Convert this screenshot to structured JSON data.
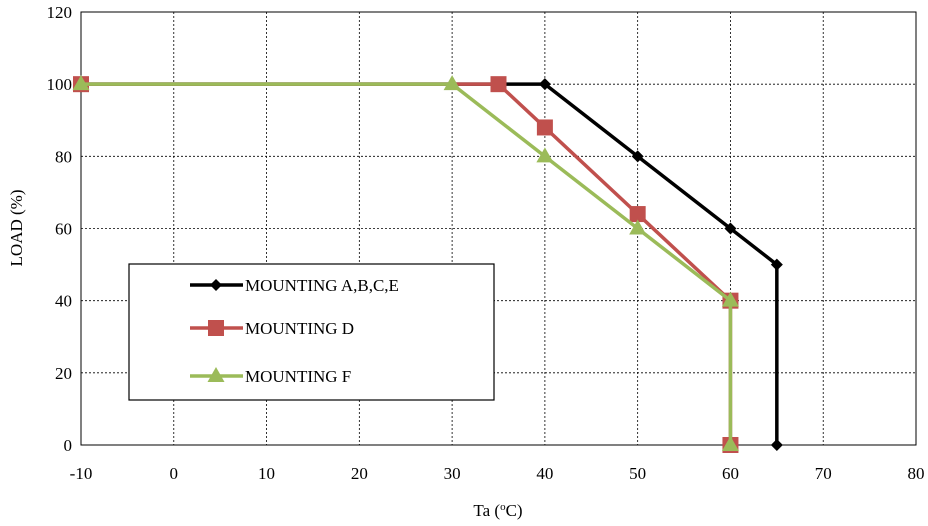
{
  "chart_data": {
    "type": "line",
    "title": "",
    "xlabel": "Ta (",
    "xlabel_sup": "o",
    "xlabel_tail": "C)",
    "ylabel": "LOAD (%)",
    "xlim": [
      -10,
      80
    ],
    "ylim": [
      0,
      120
    ],
    "xticks": [
      -10,
      0,
      10,
      20,
      30,
      40,
      50,
      60,
      70,
      80
    ],
    "yticks": [
      0,
      20,
      40,
      60,
      80,
      100,
      120
    ],
    "grid": true,
    "legend_position": "lower-left",
    "series": [
      {
        "name": "MOUNTING A,B,C,E",
        "color": "#000000",
        "marker": "diamond",
        "points": [
          [
            -10,
            100
          ],
          [
            40,
            100
          ],
          [
            50,
            80
          ],
          [
            60,
            60
          ],
          [
            65,
            50
          ],
          [
            65,
            0
          ]
        ]
      },
      {
        "name": "MOUNTING D",
        "color": "#c0504d",
        "marker": "square",
        "points": [
          [
            -10,
            100
          ],
          [
            35,
            100
          ],
          [
            40,
            88
          ],
          [
            50,
            64
          ],
          [
            60,
            40
          ],
          [
            60,
            0
          ]
        ]
      },
      {
        "name": "MOUNTING F",
        "color": "#9bbb59",
        "marker": "triangle",
        "points": [
          [
            -10,
            100
          ],
          [
            30,
            100
          ],
          [
            40,
            80
          ],
          [
            50,
            60
          ],
          [
            60,
            40
          ],
          [
            60,
            0
          ]
        ]
      }
    ]
  }
}
